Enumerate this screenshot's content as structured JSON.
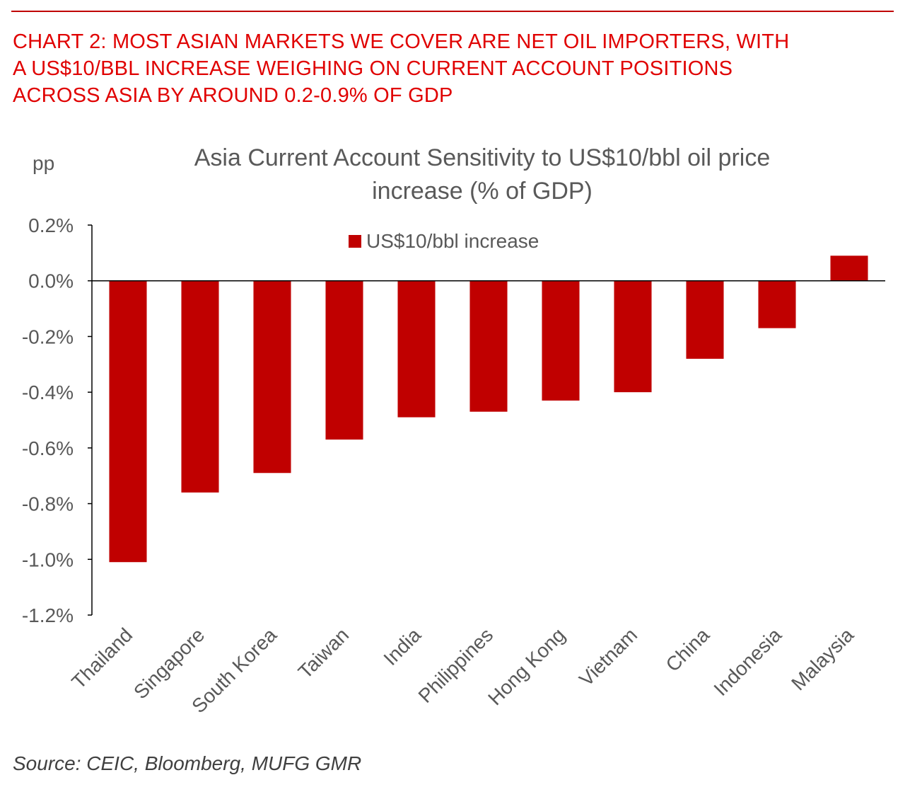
{
  "header": {
    "title_lines": [
      "CHART 2: MOST ASIAN MARKETS WE COVER ARE NET OIL IMPORTERS, WITH",
      "A US$10/BBL INCREASE WEIGHING ON CURRENT ACCOUNT POSITIONS",
      "ACROSS ASIA BY AROUND 0.2-0.9% OF GDP"
    ]
  },
  "chart_data": {
    "type": "bar",
    "title_lines": [
      "Asia Current Account Sensitivity to US$10/bbl oil price",
      "increase (% of GDP)"
    ],
    "unit_label": "pp",
    "categories": [
      "Thailand",
      "Singapore",
      "South Korea",
      "Taiwan",
      "India",
      "Philippines",
      "Hong Kong",
      "Vietnam",
      "China",
      "Indonesia",
      "Malaysia"
    ],
    "series": [
      {
        "name": "US$10/bbl increase",
        "values": [
          -1.01,
          -0.76,
          -0.69,
          -0.57,
          -0.49,
          -0.47,
          -0.43,
          -0.4,
          -0.28,
          -0.17,
          0.09
        ]
      }
    ],
    "ylim": [
      -1.2,
      0.2
    ],
    "yticks": [
      0.2,
      0.0,
      -0.2,
      -0.4,
      -0.6,
      -0.8,
      -1.0,
      -1.2
    ],
    "ytick_labels": [
      "0.2%",
      "0.0%",
      "-0.2%",
      "-0.4%",
      "-0.6%",
      "-0.8%",
      "-1.0%",
      "-1.2%"
    ],
    "legend_position": "top-center",
    "grid": false,
    "bar_color": "#c00000"
  },
  "footer": {
    "source": "Source: CEIC, Bloomberg, MUFG GMR"
  }
}
